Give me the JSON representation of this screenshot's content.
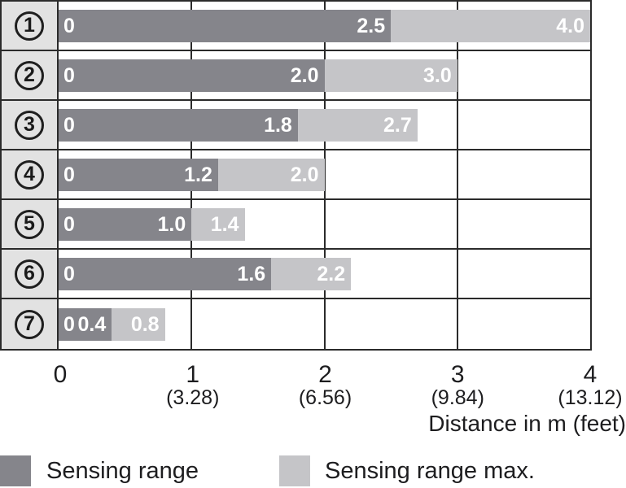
{
  "colors": {
    "sensing_range": "#85858b",
    "sensing_range_max": "#c5c5c8",
    "row_label_background": "#e2e2e2",
    "grid_border": "#2b2b2b",
    "bar_text": "#ffffff",
    "axis_text": "#1d1d1f"
  },
  "chart_data": {
    "type": "bar",
    "orientation": "horizontal",
    "title": "",
    "xlabel": "Distance in m (feet)",
    "ylabel": "",
    "xlim": [
      0,
      4
    ],
    "grid": true,
    "legend_position": "bottom",
    "categories": [
      "1",
      "2",
      "3",
      "4",
      "5",
      "6",
      "7"
    ],
    "series": [
      {
        "name": "Sensing range",
        "color": "#85858b",
        "values": [
          2.5,
          2.0,
          1.8,
          1.2,
          1.0,
          1.6,
          0.4
        ]
      },
      {
        "name": "Sensing range max.",
        "color": "#c5c5c8",
        "values": [
          4.0,
          3.0,
          2.7,
          2.0,
          1.4,
          2.2,
          0.8
        ]
      }
    ],
    "rows": [
      {
        "category": "1",
        "zero_label": "0",
        "range": 2.5,
        "range_label": "2.5",
        "max": 4.0,
        "max_label": "4.0"
      },
      {
        "category": "2",
        "zero_label": "0",
        "range": 2.0,
        "range_label": "2.0",
        "max": 3.0,
        "max_label": "3.0"
      },
      {
        "category": "3",
        "zero_label": "0",
        "range": 1.8,
        "range_label": "1.8",
        "max": 2.7,
        "max_label": "2.7"
      },
      {
        "category": "4",
        "zero_label": "0",
        "range": 1.2,
        "range_label": "1.2",
        "max": 2.0,
        "max_label": "2.0"
      },
      {
        "category": "5",
        "zero_label": "0",
        "range": 1.0,
        "range_label": "1.0",
        "max": 1.4,
        "max_label": "1.4"
      },
      {
        "category": "6",
        "zero_label": "0",
        "range": 1.6,
        "range_label": "1.6",
        "max": 2.2,
        "max_label": "2.2"
      },
      {
        "category": "7",
        "zero_label": "0",
        "range": 0.4,
        "range_label": "0.4",
        "max": 0.8,
        "max_label": "0.8"
      }
    ],
    "x_ticks": [
      {
        "m": "0",
        "feet": ""
      },
      {
        "m": "1",
        "feet": "(3.28)"
      },
      {
        "m": "2",
        "feet": "(6.56)"
      },
      {
        "m": "3",
        "feet": "(9.84)"
      },
      {
        "m": "4",
        "feet": "(13.12)"
      }
    ],
    "legend": [
      {
        "label": "Sensing range",
        "color": "#85858b"
      },
      {
        "label": "Sensing range max.",
        "color": "#c5c5c8"
      }
    ]
  }
}
